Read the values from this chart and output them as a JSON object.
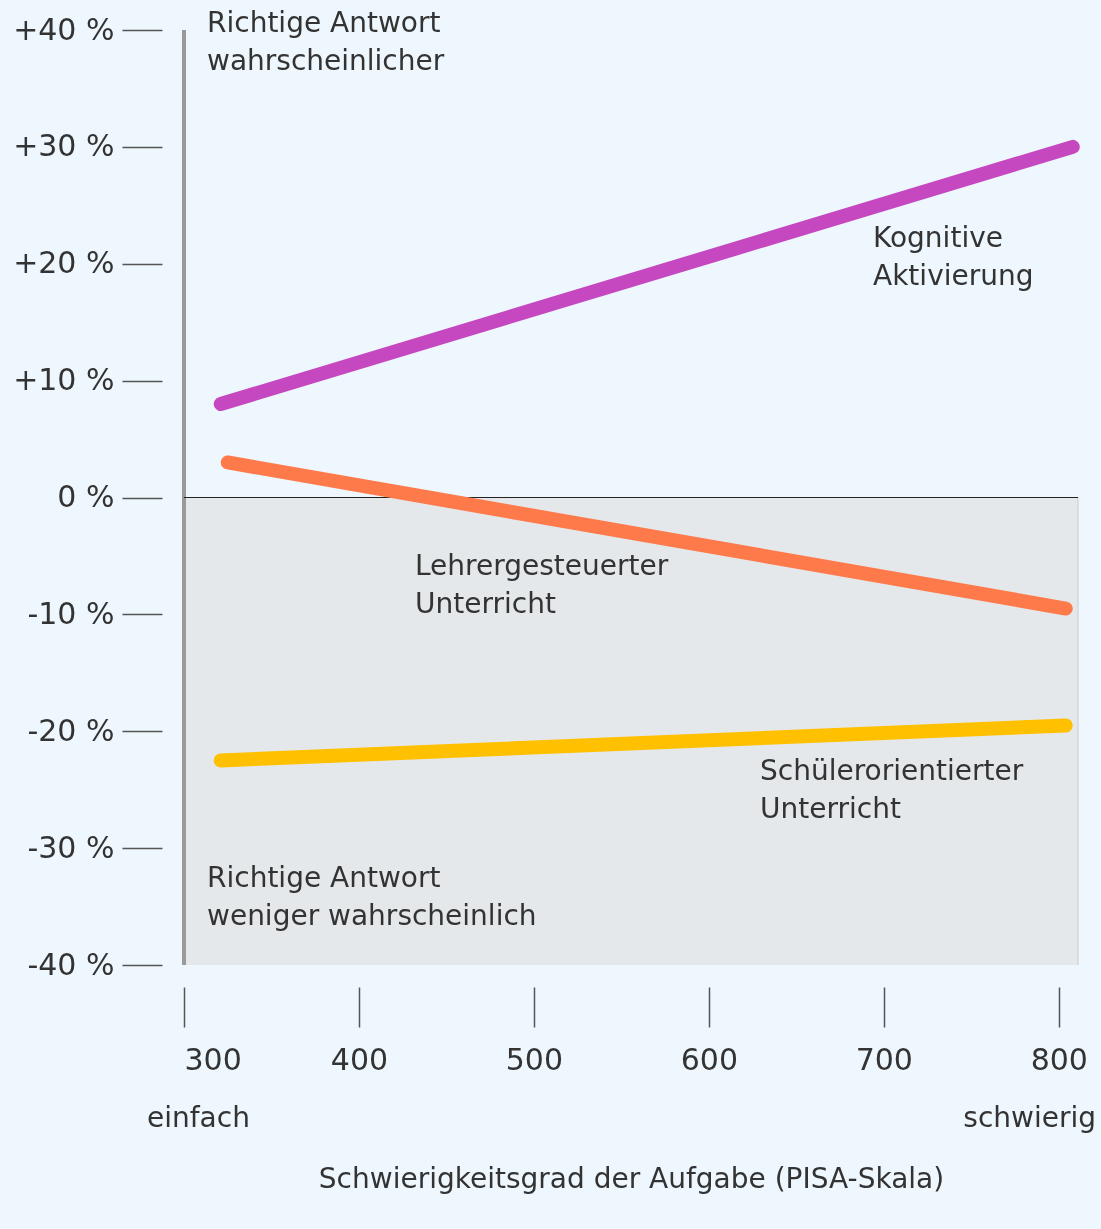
{
  "chart_data": {
    "type": "line",
    "xlabel": "Schwierigkeitsgrad der Aufgabe (PISA-Skala)",
    "series": [
      {
        "name": "Kognitive\nAktivierung",
        "color": "#c548c0",
        "x": [
          321,
          808
        ],
        "values": [
          8,
          30
        ]
      },
      {
        "name": "Lehrergesteuerter\nUnterricht",
        "color": "#ff7a4a",
        "x": [
          325,
          804
        ],
        "values": [
          3,
          -9.5
        ]
      },
      {
        "name": "Schülerorientierter\nUnterricht",
        "color": "#ffc000",
        "x": [
          321,
          804
        ],
        "values": [
          -22.5,
          -19.5
        ]
      }
    ],
    "xlim": [
      300,
      811
    ],
    "xticks": [
      300,
      400,
      500,
      600,
      700,
      800
    ],
    "ylim": [
      -40,
      40
    ],
    "yticks": [
      {
        "value": 40,
        "label": "+40 %"
      },
      {
        "value": 30,
        "label": "+30 %"
      },
      {
        "value": 20,
        "label": "+20 %"
      },
      {
        "value": 10,
        "label": "+10 %"
      },
      {
        "value": 0,
        "label": "0 %"
      },
      {
        "value": -10,
        "label": "-10 %"
      },
      {
        "value": -20,
        "label": "-20 %"
      },
      {
        "value": -30,
        "label": "-30 %"
      },
      {
        "value": -40,
        "label": "-40 %"
      }
    ],
    "bands": [
      {
        "axis": "y",
        "from": -40,
        "to": 0,
        "color": "#e5e8ea"
      }
    ],
    "ref_lines": [
      {
        "axis": "y",
        "value": 0,
        "color": "#222222"
      }
    ],
    "annotations": [
      "Richtige Antwort\nwahrscheinlicher",
      "Richtige Antwort\nweniger wahrscheinlich",
      "einfach",
      "schwierig"
    ],
    "legend": false,
    "grid": false,
    "line_style": "solid"
  }
}
